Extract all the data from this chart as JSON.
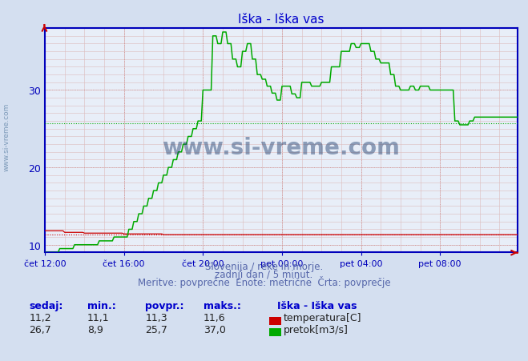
{
  "title": "Iška - Iška vas",
  "bg_color": "#d4dff0",
  "plot_bg_color": "#e8eef8",
  "x_tick_labels": [
    "čet 12:00",
    "čet 16:00",
    "čet 20:00",
    "pet 00:00",
    "pet 04:00",
    "pet 08:00"
  ],
  "x_ticks_pos": [
    0,
    48,
    96,
    144,
    192,
    240
  ],
  "total_points": 288,
  "ylim": [
    9,
    38
  ],
  "yticks": [
    10,
    20,
    30
  ],
  "temp_color": "#cc0000",
  "flow_color": "#00aa00",
  "avg_temp": 11.3,
  "avg_flow": 25.7,
  "footnote1": "Slovenija / reke in morje.",
  "footnote2": "zadnji dan / 5 minut.",
  "footnote3": "Meritve: povprečne  Enote: metrične  Črta: povprečje",
  "legend_title": "Iška - Iška vas",
  "legend_temp_label": "temperatura[C]",
  "legend_flow_label": "pretok[m3/s]",
  "table_headers": [
    "sedaj:",
    "min.:",
    "povpr.:",
    "maks.:"
  ],
  "temp_row": [
    "11,2",
    "11,1",
    "11,3",
    "11,6"
  ],
  "flow_row": [
    "26,7",
    "8,9",
    "25,7",
    "37,0"
  ],
  "watermark": "www.si-vreme.com",
  "watermark_color": "#1a3a6a",
  "spine_color": "#0000bb",
  "tick_color": "#0000bb",
  "footnote_color": "#5566aa",
  "title_color": "#0000cc"
}
